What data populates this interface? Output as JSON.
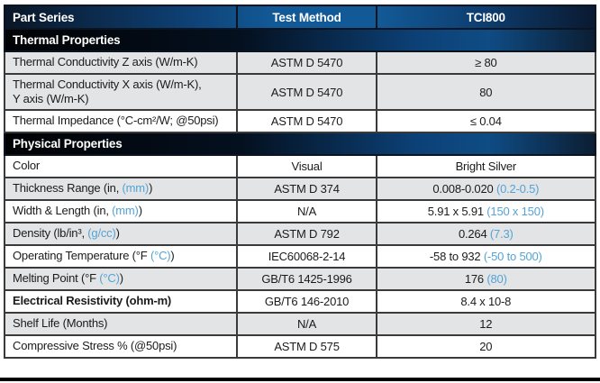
{
  "colors": {
    "accent_blue": "#54a3d6",
    "header_blue": "#125a97",
    "dark_navy": "#0a1626",
    "row_gray": "#e3e4e5",
    "grid_border": "#3a3a3a"
  },
  "table": {
    "columns": [
      {
        "label": "Part Series"
      },
      {
        "label": "Test Method"
      },
      {
        "label": "TCI800"
      }
    ],
    "sections": [
      {
        "title": "Thermal Properties",
        "rows": [
          {
            "shade": "gray",
            "property": [
              {
                "t": "Thermal Conductivity Z axis (W/m-K)"
              }
            ],
            "method": "ASTM D 5470",
            "value": [
              {
                "t": "≥ 80"
              }
            ]
          },
          {
            "shade": "gray",
            "tall": true,
            "property": [
              {
                "t": "Thermal Conductivity X axis (W/m-K),\nY axis (W/m-K)"
              }
            ],
            "method": "ASTM D 5470",
            "value": [
              {
                "t": "80"
              }
            ]
          },
          {
            "shade": "white",
            "property": [
              {
                "t": "Thermal Impedance (°C-cm²/W; @50psi)"
              }
            ],
            "method": "ASTM D 5470",
            "value": [
              {
                "t": "≤ 0.04"
              }
            ]
          }
        ]
      },
      {
        "title": "Physical Properties",
        "rows": [
          {
            "shade": "white",
            "property": [
              {
                "t": "Color"
              }
            ],
            "method": "Visual",
            "value": [
              {
                "t": "Bright Silver"
              }
            ]
          },
          {
            "shade": "gray",
            "property": [
              {
                "t": "Thickness Range (in, "
              },
              {
                "t": "(mm)",
                "blue": true
              },
              {
                "t": ")"
              }
            ],
            "method": "ASTM D 374",
            "value": [
              {
                "t": "0.008-0.020 "
              },
              {
                "t": "(0.2-0.5)",
                "blue": true
              }
            ]
          },
          {
            "shade": "white",
            "property": [
              {
                "t": "Width & Length (in, "
              },
              {
                "t": "(mm)",
                "blue": true
              },
              {
                "t": ")"
              }
            ],
            "method": "N/A",
            "value": [
              {
                "t": "5.91 x 5.91 "
              },
              {
                "t": "(150 x 150)",
                "blue": true
              }
            ]
          },
          {
            "shade": "gray",
            "property": [
              {
                "t": "Density (lb/in³, "
              },
              {
                "t": "(g/cc)",
                "blue": true
              },
              {
                "t": ")"
              }
            ],
            "method": "ASTM D 792",
            "value": [
              {
                "t": "0.264 "
              },
              {
                "t": "(7.3)",
                "blue": true
              }
            ]
          },
          {
            "shade": "white",
            "property": [
              {
                "t": "Operating Temperature (°F "
              },
              {
                "t": "(°C)",
                "blue": true
              },
              {
                "t": ")"
              }
            ],
            "method": "IEC60068-2-14",
            "value": [
              {
                "t": "-58 to 932 "
              },
              {
                "t": "(-50 to 500)",
                "blue": true
              }
            ]
          },
          {
            "shade": "gray",
            "property": [
              {
                "t": "Melting Point (°F "
              },
              {
                "t": "(°C)",
                "blue": true
              },
              {
                "t": ")"
              }
            ],
            "method": "GB/T6 1425-1996",
            "value": [
              {
                "t": "176 "
              },
              {
                "t": "(80)",
                "blue": true
              }
            ]
          },
          {
            "shade": "white",
            "bold": true,
            "property": [
              {
                "t": "Electrical Resistivity (ohm-m)"
              }
            ],
            "method": "GB/T6 146-2010",
            "value": [
              {
                "t": "8.4 x 10-8"
              }
            ]
          },
          {
            "shade": "gray",
            "property": [
              {
                "t": "Shelf Life (Months)"
              }
            ],
            "method": "N/A",
            "value": [
              {
                "t": "12"
              }
            ]
          },
          {
            "shade": "white",
            "property": [
              {
                "t": "Compressive Stress % (@50psi)"
              }
            ],
            "method": "ASTM D 575",
            "value": [
              {
                "t": "20"
              }
            ]
          }
        ]
      }
    ]
  }
}
